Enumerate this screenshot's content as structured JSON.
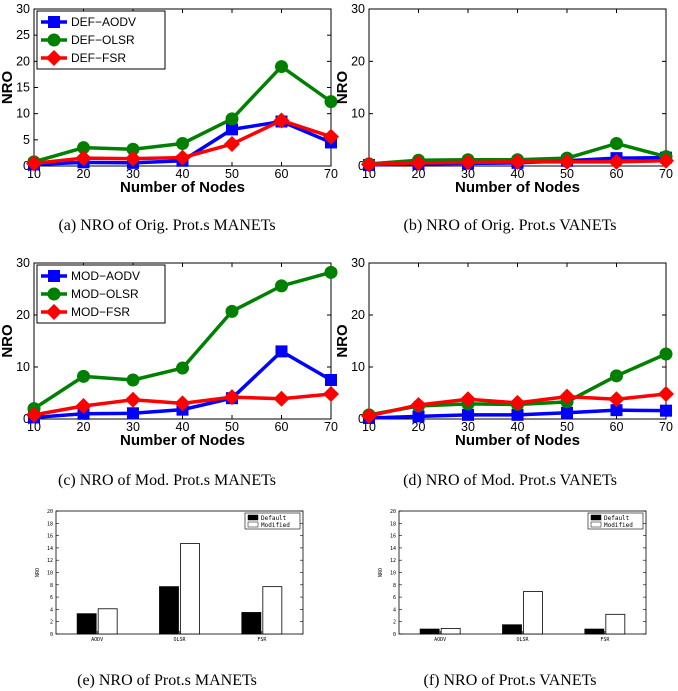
{
  "captions": [
    "(a) NRO of Orig. Prot.s MANETs",
    "(b) NRO of Orig. Prot.s VANETs",
    "(c) NRO of Mod. Prot.s MANETs",
    "(d) NRO of Mod. Prot.s VANETs",
    "(e) NRO of Prot.s MANETs",
    "(f) NRO of Prot.s VANETs"
  ],
  "chart_data": [
    {
      "id": "a",
      "type": "line",
      "xlabel": "Number of Nodes",
      "ylabel": "NRO",
      "x": [
        10,
        20,
        30,
        40,
        50,
        60,
        70
      ],
      "xlim": [
        10,
        70
      ],
      "ylim": [
        0,
        30
      ],
      "yticks": [
        0,
        5,
        10,
        15,
        20,
        25,
        30
      ],
      "legend": "top-left",
      "grid": false,
      "series": [
        {
          "name": "DEF−AODV",
          "color": "#0000ff",
          "marker": "square",
          "values": [
            0.3,
            0.7,
            0.6,
            1.0,
            7.0,
            8.5,
            4.5
          ]
        },
        {
          "name": "DEF−OLSR",
          "color": "#008000",
          "marker": "circle",
          "values": [
            0.8,
            3.5,
            3.2,
            4.3,
            9.0,
            19.0,
            12.3
          ]
        },
        {
          "name": "DEF−FSR",
          "color": "#ff0000",
          "marker": "diamond",
          "values": [
            0.5,
            1.5,
            1.4,
            1.6,
            4.2,
            8.7,
            5.6
          ]
        }
      ]
    },
    {
      "id": "b",
      "type": "line",
      "xlabel": "Number of Nodes",
      "ylabel": "NRO",
      "x": [
        10,
        20,
        30,
        40,
        50,
        60,
        70
      ],
      "xlim": [
        10,
        70
      ],
      "ylim": [
        0,
        30
      ],
      "yticks": [
        0,
        10,
        20,
        30
      ],
      "grid": false,
      "series": [
        {
          "name": "DEF−AODV",
          "color": "#0000ff",
          "marker": "square",
          "values": [
            0.2,
            0.4,
            0.5,
            0.6,
            1.0,
            1.5,
            1.6
          ]
        },
        {
          "name": "DEF−OLSR",
          "color": "#008000",
          "marker": "circle",
          "values": [
            0.4,
            1.1,
            1.2,
            1.2,
            1.5,
            4.3,
            1.8
          ]
        },
        {
          "name": "DEF−FSR",
          "color": "#ff0000",
          "marker": "diamond",
          "values": [
            0.3,
            0.6,
            0.7,
            0.8,
            0.8,
            0.8,
            1.0
          ]
        }
      ]
    },
    {
      "id": "c",
      "type": "line",
      "xlabel": "Number of Nodes",
      "ylabel": "NRO",
      "x": [
        10,
        20,
        30,
        40,
        50,
        60,
        70
      ],
      "xlim": [
        10,
        70
      ],
      "ylim": [
        0,
        30
      ],
      "yticks": [
        0,
        10,
        20,
        30
      ],
      "legend": "top-left",
      "grid": false,
      "series": [
        {
          "name": "MOD−AODV",
          "color": "#0000ff",
          "marker": "square",
          "values": [
            0.3,
            1.0,
            1.1,
            1.8,
            4.0,
            13.0,
            7.5
          ]
        },
        {
          "name": "MOD−OLSR",
          "color": "#008000",
          "marker": "circle",
          "values": [
            2.0,
            8.2,
            7.5,
            9.8,
            20.7,
            25.6,
            28.2
          ]
        },
        {
          "name": "MOD−FSR",
          "color": "#ff0000",
          "marker": "diamond",
          "values": [
            0.8,
            2.5,
            3.7,
            3.0,
            4.2,
            3.9,
            4.8
          ]
        }
      ]
    },
    {
      "id": "d",
      "type": "line",
      "xlabel": "Number of Nodes",
      "ylabel": "NRO",
      "x": [
        10,
        20,
        30,
        40,
        50,
        60,
        70
      ],
      "xlim": [
        10,
        70
      ],
      "ylim": [
        0,
        30
      ],
      "yticks": [
        0,
        10,
        20,
        30
      ],
      "grid": false,
      "series": [
        {
          "name": "MOD−AODV",
          "color": "#0000ff",
          "marker": "square",
          "values": [
            0.2,
            0.5,
            0.8,
            0.8,
            1.2,
            1.7,
            1.6
          ]
        },
        {
          "name": "MOD−OLSR",
          "color": "#008000",
          "marker": "circle",
          "values": [
            0.8,
            2.5,
            2.9,
            2.8,
            3.3,
            8.3,
            12.5
          ]
        },
        {
          "name": "MOD−FSR",
          "color": "#ff0000",
          "marker": "diamond",
          "values": [
            0.6,
            2.7,
            3.8,
            3.1,
            4.3,
            3.8,
            4.8
          ]
        }
      ]
    },
    {
      "id": "e",
      "type": "bar",
      "ylabel": "NRO",
      "categories": [
        "AODV",
        "OLSR",
        "FSR"
      ],
      "ylim": [
        0,
        20
      ],
      "yticks": [
        0,
        2,
        4,
        6,
        8,
        10,
        12,
        14,
        16,
        18,
        20
      ],
      "legend": "top-right",
      "series": [
        {
          "name": "Default",
          "color": "#000000",
          "values": [
            3.3,
            7.7,
            3.5
          ]
        },
        {
          "name": "Modified",
          "color": "#ffffff",
          "values": [
            4.1,
            14.7,
            7.7
          ]
        }
      ]
    },
    {
      "id": "f",
      "type": "bar",
      "ylabel": "NRO",
      "categories": [
        "AODV",
        "OLSR",
        "FSR"
      ],
      "ylim": [
        0,
        20
      ],
      "yticks": [
        0,
        2,
        4,
        6,
        8,
        10,
        12,
        14,
        16,
        18,
        20
      ],
      "legend": "top-right",
      "series": [
        {
          "name": "Default",
          "color": "#000000",
          "values": [
            0.8,
            1.5,
            0.8
          ]
        },
        {
          "name": "Modified",
          "color": "#ffffff",
          "values": [
            0.9,
            6.9,
            3.2
          ]
        }
      ]
    }
  ]
}
